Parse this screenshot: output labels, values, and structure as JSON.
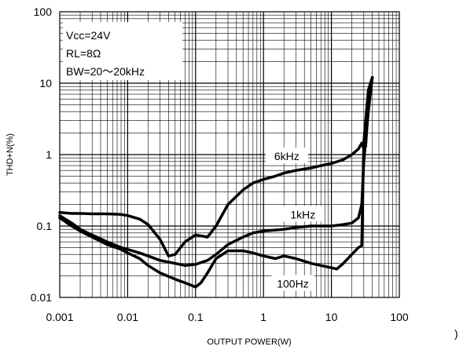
{
  "chart_data": {
    "type": "line",
    "title": "",
    "xlabel": "OUTPUT POWER(W)",
    "ylabel": "THD+N(%)",
    "x_scale": "log",
    "y_scale": "log",
    "xlim": [
      0.001,
      100
    ],
    "ylim": [
      0.01,
      100
    ],
    "x_ticks": [
      "0.001",
      "0.01",
      "0.1",
      "1",
      "10",
      "100"
    ],
    "y_ticks": [
      "100",
      "10",
      "1",
      "0.1",
      "0.01"
    ],
    "grid": true,
    "annotations": [
      "Vcc=24V",
      "RL=8Ω",
      "BW=20～20kHz"
    ],
    "stray_mark": ")",
    "series": [
      {
        "name": "6kHz",
        "x": [
          0.001,
          0.0015,
          0.002,
          0.003,
          0.005,
          0.008,
          0.01,
          0.015,
          0.02,
          0.03,
          0.04,
          0.05,
          0.07,
          0.1,
          0.15,
          0.2,
          0.3,
          0.5,
          0.7,
          1,
          1.5,
          2,
          3,
          5,
          7,
          10,
          15,
          20,
          25,
          28,
          30,
          32,
          35,
          40
        ],
        "y": [
          0.155,
          0.15,
          0.15,
          0.148,
          0.148,
          0.145,
          0.14,
          0.125,
          0.105,
          0.065,
          0.038,
          0.04,
          0.06,
          0.075,
          0.07,
          0.1,
          0.2,
          0.32,
          0.4,
          0.45,
          0.5,
          0.55,
          0.6,
          0.65,
          0.7,
          0.75,
          0.85,
          1.0,
          1.2,
          1.45,
          1.2,
          1.3,
          5,
          12
        ]
      },
      {
        "name": "1kHz",
        "x": [
          0.001,
          0.0015,
          0.002,
          0.003,
          0.005,
          0.008,
          0.01,
          0.015,
          0.02,
          0.03,
          0.05,
          0.07,
          0.1,
          0.15,
          0.2,
          0.3,
          0.5,
          0.7,
          1,
          1.5,
          2,
          3,
          5,
          7,
          10,
          15,
          20,
          25,
          28,
          30,
          35,
          40
        ],
        "y": [
          0.14,
          0.11,
          0.09,
          0.075,
          0.06,
          0.05,
          0.047,
          0.042,
          0.038,
          0.033,
          0.03,
          0.028,
          0.029,
          0.033,
          0.04,
          0.055,
          0.07,
          0.08,
          0.085,
          0.088,
          0.09,
          0.095,
          0.1,
          0.1,
          0.1,
          0.105,
          0.11,
          0.13,
          0.2,
          0.8,
          4,
          12
        ]
      },
      {
        "name": "100Hz",
        "x": [
          0.001,
          0.0015,
          0.002,
          0.003,
          0.005,
          0.008,
          0.01,
          0.015,
          0.02,
          0.03,
          0.05,
          0.07,
          0.1,
          0.12,
          0.15,
          0.2,
          0.3,
          0.5,
          0.7,
          1,
          1.5,
          2,
          3,
          5,
          7,
          10,
          12,
          15,
          20,
          25,
          28,
          30,
          35,
          40
        ],
        "y": [
          0.13,
          0.1,
          0.085,
          0.07,
          0.055,
          0.047,
          0.042,
          0.035,
          0.028,
          0.022,
          0.018,
          0.016,
          0.014,
          0.016,
          0.022,
          0.035,
          0.045,
          0.045,
          0.042,
          0.038,
          0.035,
          0.038,
          0.035,
          0.03,
          0.028,
          0.026,
          0.025,
          0.03,
          0.04,
          0.05,
          0.053,
          1.5,
          8,
          12
        ]
      }
    ]
  }
}
